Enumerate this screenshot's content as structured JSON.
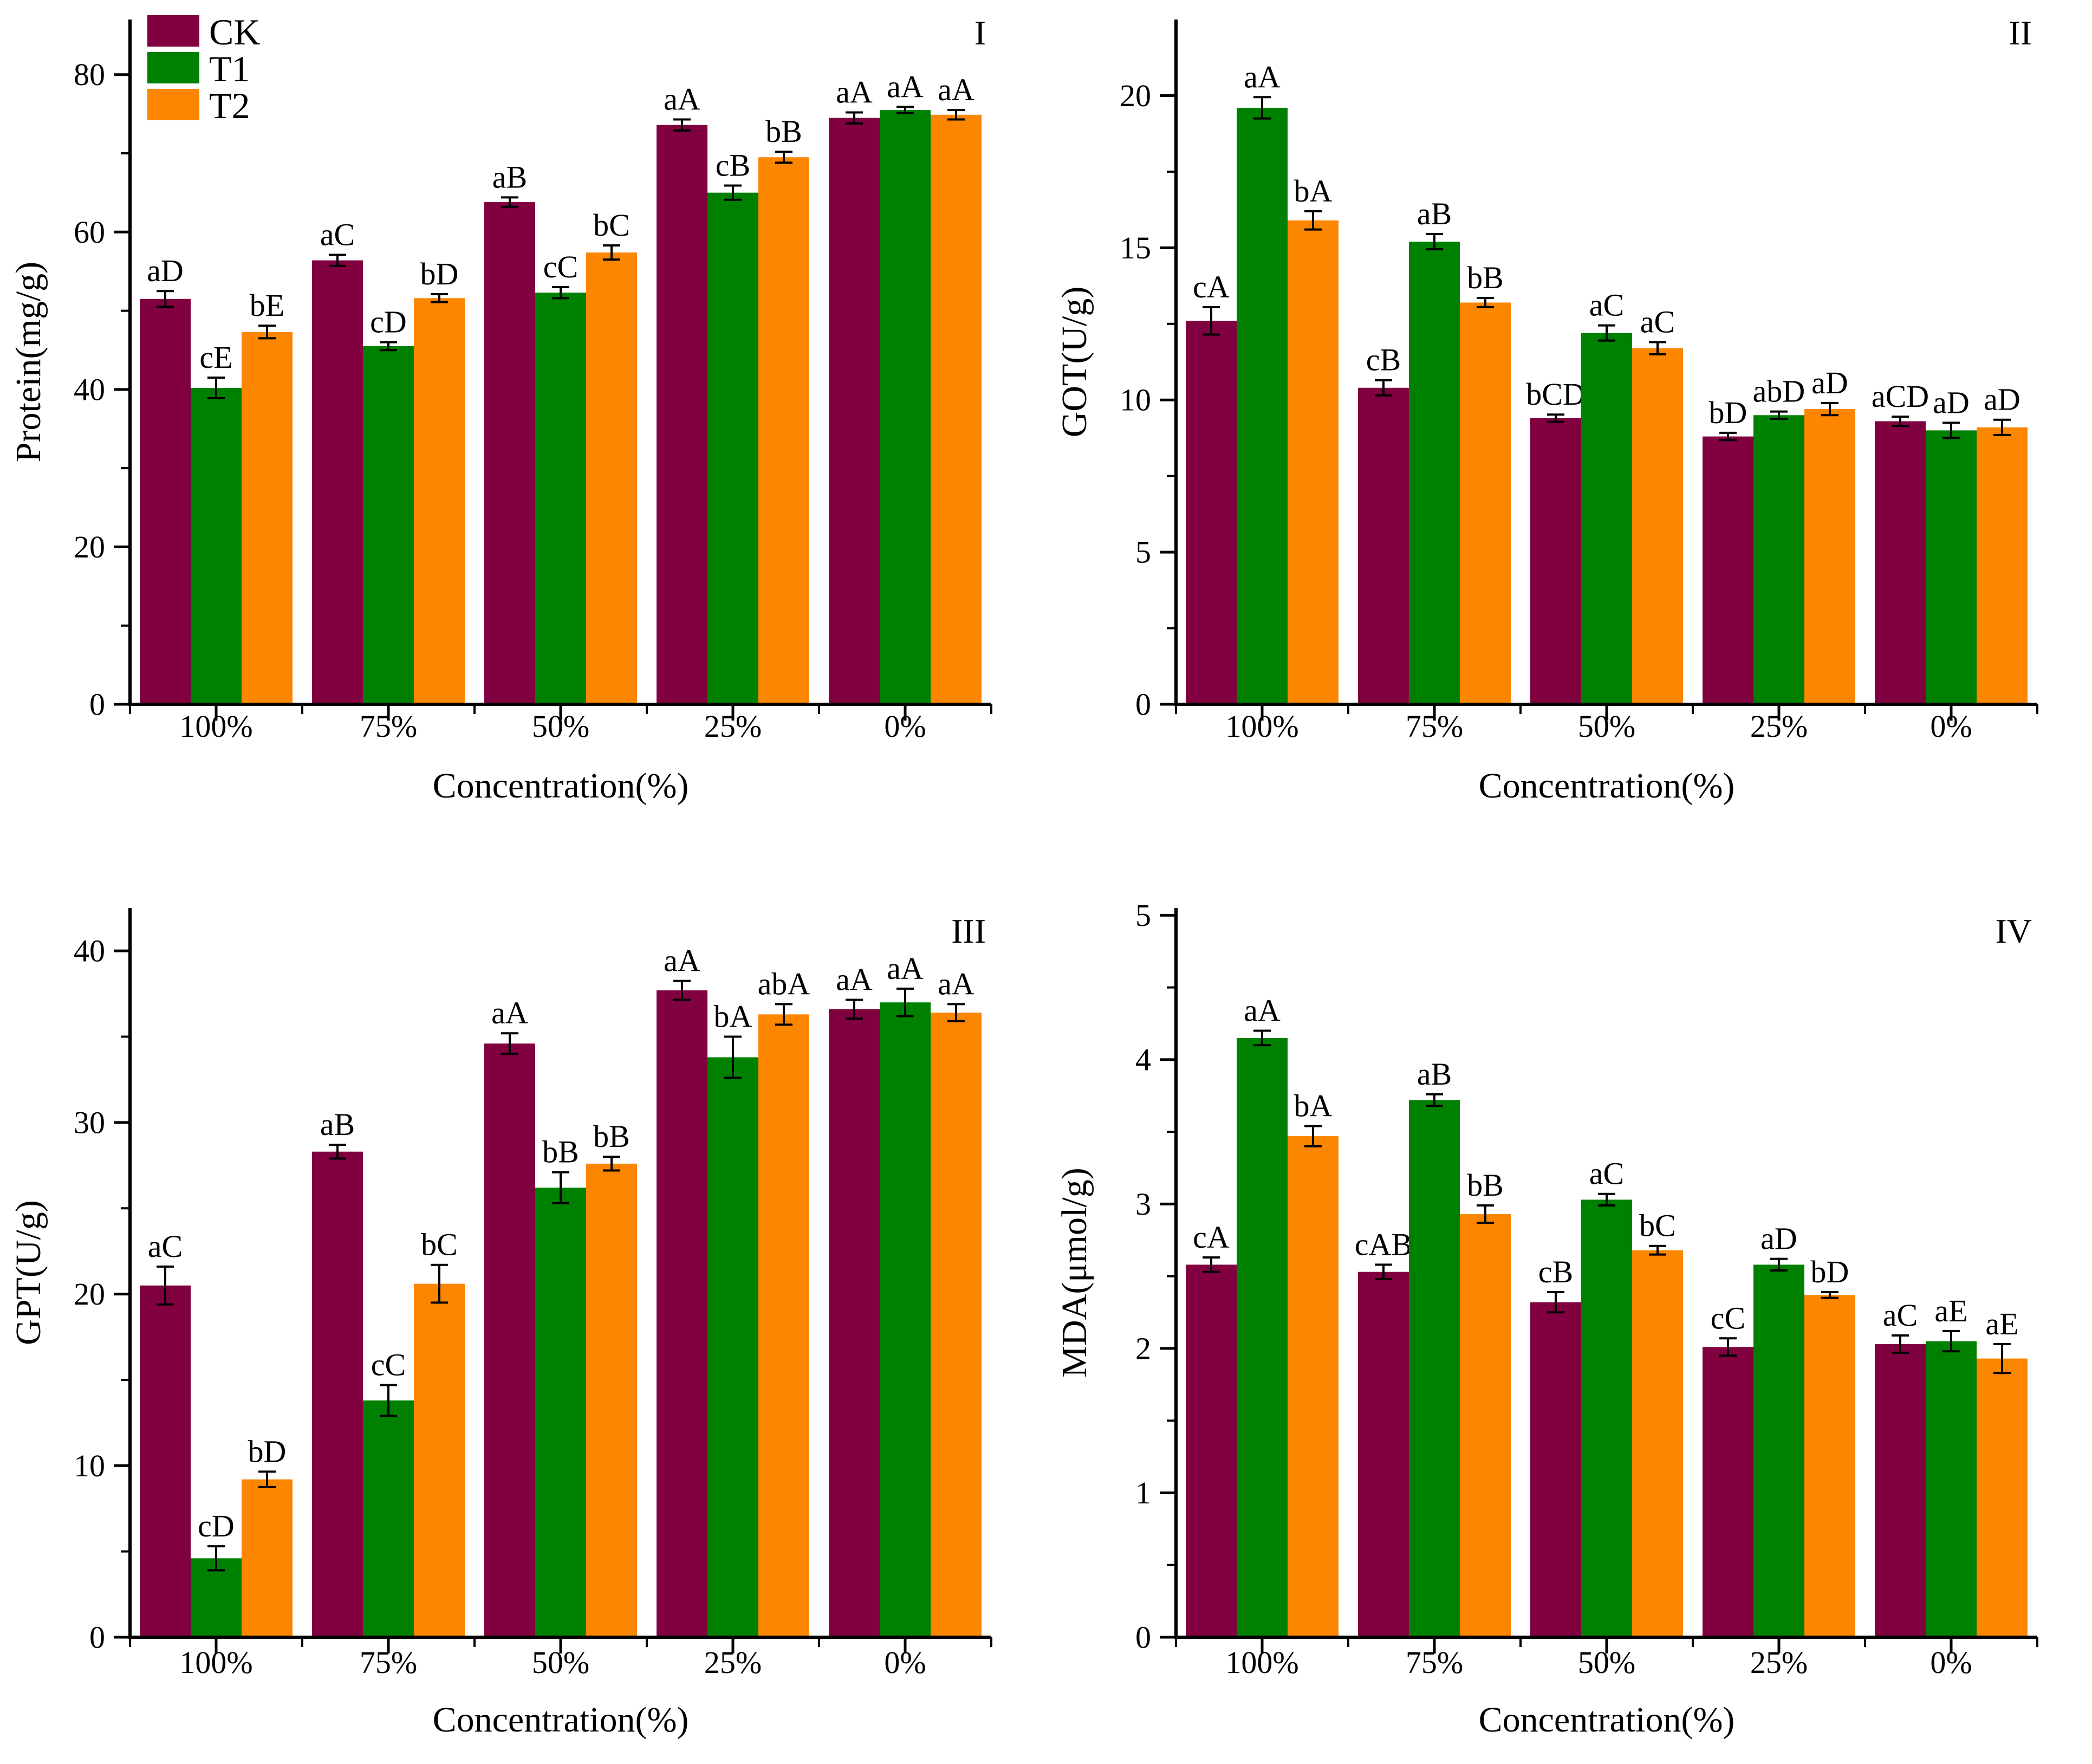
{
  "figure": {
    "description": "Four-panel grouped bar chart figure with significance letters and error bars",
    "axis_color": "#000000",
    "background": "#ffffff"
  },
  "legend": {
    "position": "top-left-inside-panel-I",
    "items": [
      {
        "label": "CK",
        "color": "#800040"
      },
      {
        "label": "T1",
        "color": "#008000"
      },
      {
        "label": "T2",
        "color": "#FC8600"
      }
    ]
  },
  "chart_data": [
    {
      "type": "bar",
      "panel_label": "I",
      "ylabel": "Protein(mg/g)",
      "xlabel": "Concentration(%)",
      "categories": [
        "100%",
        "75%",
        "50%",
        "25%",
        "0%"
      ],
      "ylim": [
        0,
        87
      ],
      "yticks": [
        0,
        20,
        40,
        60,
        80
      ],
      "grid": "off",
      "series": [
        {
          "name": "CK",
          "values": [
            51.5,
            56.4,
            63.8,
            73.6,
            74.5
          ],
          "errors": [
            1.0,
            0.7,
            0.6,
            0.7,
            0.7
          ],
          "sig_labels": [
            "aD",
            "aC",
            "aB",
            "aA",
            "aA"
          ]
        },
        {
          "name": "T1",
          "values": [
            40.2,
            45.5,
            52.3,
            65.0,
            75.5
          ],
          "errors": [
            1.3,
            0.5,
            0.7,
            0.9,
            0.4
          ],
          "sig_labels": [
            "cE",
            "cD",
            "cC",
            "cB",
            "aA"
          ]
        },
        {
          "name": "T2",
          "values": [
            47.3,
            51.6,
            57.4,
            69.5,
            74.9
          ],
          "errors": [
            0.8,
            0.5,
            0.9,
            0.7,
            0.6
          ],
          "sig_labels": [
            "bE",
            "bD",
            "bC",
            "bB",
            "aA"
          ]
        }
      ]
    },
    {
      "type": "bar",
      "panel_label": "II",
      "ylabel": "GOT(U/g)",
      "xlabel": "Concentration(%)",
      "categories": [
        "100%",
        "75%",
        "50%",
        "25%",
        "0%"
      ],
      "ylim": [
        0,
        22.5
      ],
      "yticks": [
        0,
        5,
        10,
        15,
        20
      ],
      "grid": "off",
      "series": [
        {
          "name": "CK",
          "values": [
            12.6,
            10.4,
            9.4,
            8.8,
            9.3
          ],
          "errors": [
            0.45,
            0.25,
            0.12,
            0.12,
            0.15
          ],
          "sig_labels": [
            "cA",
            "cB",
            "bCD",
            "bD",
            "aCD"
          ]
        },
        {
          "name": "T1",
          "values": [
            19.6,
            15.2,
            12.2,
            9.5,
            9.0
          ],
          "errors": [
            0.35,
            0.25,
            0.25,
            0.12,
            0.25
          ],
          "sig_labels": [
            "aA",
            "aB",
            "aC",
            "abD",
            "aD"
          ]
        },
        {
          "name": "T2",
          "values": [
            15.9,
            13.2,
            11.7,
            9.7,
            9.1
          ],
          "errors": [
            0.3,
            0.15,
            0.2,
            0.2,
            0.25
          ],
          "sig_labels": [
            "bA",
            "bB",
            "aC",
            "aD",
            "aD"
          ]
        }
      ]
    },
    {
      "type": "bar",
      "panel_label": "III",
      "ylabel": "GPT(U/g)",
      "xlabel": "Concentration(%)",
      "categories": [
        "100%",
        "75%",
        "50%",
        "25%",
        "0%"
      ],
      "ylim": [
        0,
        42.5
      ],
      "yticks": [
        0,
        10,
        20,
        30,
        40
      ],
      "grid": "off",
      "series": [
        {
          "name": "CK",
          "values": [
            20.5,
            28.3,
            34.6,
            37.7,
            36.6
          ],
          "errors": [
            1.1,
            0.4,
            0.6,
            0.55,
            0.55
          ],
          "sig_labels": [
            "aC",
            "aB",
            "aA",
            "aA",
            "aA"
          ]
        },
        {
          "name": "T1",
          "values": [
            4.6,
            13.8,
            26.2,
            33.8,
            37.0
          ],
          "errors": [
            0.7,
            0.9,
            0.9,
            1.2,
            0.8
          ],
          "sig_labels": [
            "cD",
            "cC",
            "bB",
            "bA",
            "aA"
          ]
        },
        {
          "name": "T2",
          "values": [
            9.2,
            20.6,
            27.6,
            36.3,
            36.4
          ],
          "errors": [
            0.45,
            1.1,
            0.4,
            0.6,
            0.5
          ],
          "sig_labels": [
            "bD",
            "bC",
            "bB",
            "abA",
            "aA"
          ]
        }
      ]
    },
    {
      "type": "bar",
      "panel_label": "IV",
      "ylabel": "MDA(μmol/g)",
      "xlabel": "Concentration(%)",
      "categories": [
        "100%",
        "75%",
        "50%",
        "25%",
        "0%"
      ],
      "ylim": [
        0,
        5.05
      ],
      "yticks": [
        0,
        1,
        2,
        3,
        4,
        5
      ],
      "grid": "off",
      "series": [
        {
          "name": "CK",
          "values": [
            2.58,
            2.53,
            2.32,
            2.01,
            2.03
          ],
          "errors": [
            0.05,
            0.05,
            0.07,
            0.06,
            0.06
          ],
          "sig_labels": [
            "cA",
            "cAB",
            "cB",
            "cC",
            "aC"
          ]
        },
        {
          "name": "T1",
          "values": [
            4.15,
            3.72,
            3.03,
            2.58,
            2.05
          ],
          "errors": [
            0.05,
            0.04,
            0.04,
            0.04,
            0.07
          ],
          "sig_labels": [
            "aA",
            "aB",
            "aC",
            "aD",
            "aE"
          ]
        },
        {
          "name": "T2",
          "values": [
            3.47,
            2.93,
            2.68,
            2.37,
            1.93
          ],
          "errors": [
            0.07,
            0.06,
            0.03,
            0.02,
            0.1
          ],
          "sig_labels": [
            "bA",
            "bB",
            "bC",
            "bD",
            "aE"
          ]
        }
      ]
    }
  ]
}
